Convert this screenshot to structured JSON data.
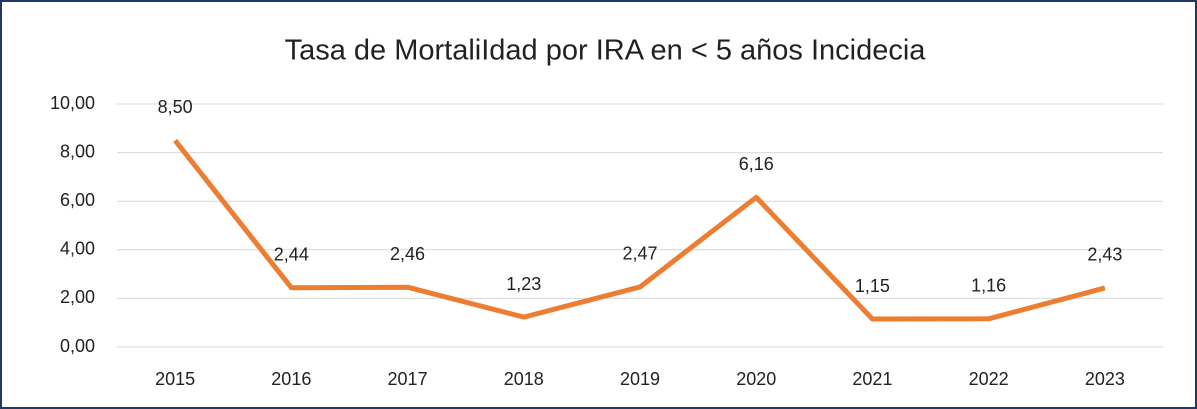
{
  "chart_data": {
    "type": "line",
    "title": "Tasa de MortaliIdad por IRA en < 5 años Incidecia",
    "categories": [
      "2015",
      "2016",
      "2017",
      "2018",
      "2019",
      "2020",
      "2021",
      "2022",
      "2023"
    ],
    "series": [
      {
        "name": "Tasa",
        "color": "#ed7d31",
        "values": [
          8.5,
          2.44,
          2.46,
          1.23,
          2.47,
          6.16,
          1.15,
          1.16,
          2.43
        ],
        "value_labels": [
          "8,50",
          "2,44",
          "2,46",
          "1,23",
          "2,47",
          "6,16",
          "1,15",
          "1,16",
          "2,43"
        ]
      }
    ],
    "ylim": [
      0,
      10
    ],
    "yticks": [
      {
        "value": 0,
        "label": "0,00"
      },
      {
        "value": 2,
        "label": "2,00"
      },
      {
        "value": 4,
        "label": "4,00"
      },
      {
        "value": 6,
        "label": "6,00"
      },
      {
        "value": 8,
        "label": "8,00"
      },
      {
        "value": 10,
        "label": "10,00"
      }
    ],
    "grid": true
  }
}
